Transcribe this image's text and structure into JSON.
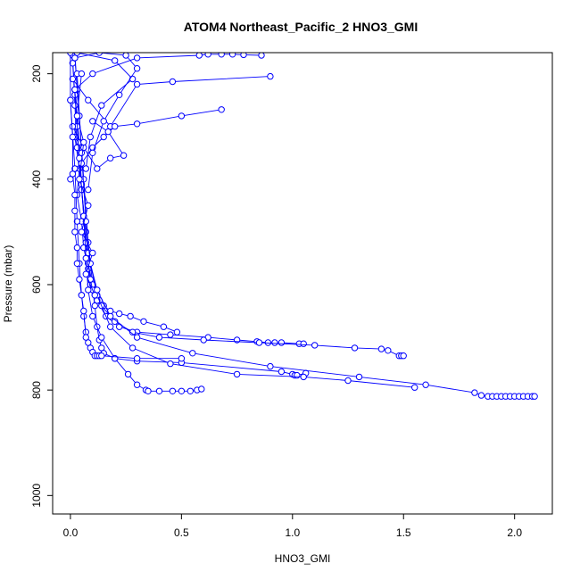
{
  "chart_data": {
    "type": "line",
    "title": "ATOM4 Northeast_Pacific_2 HNO3_GMI",
    "xlabel": "HNO3_GMI",
    "ylabel": "Pressure (mbar)",
    "xlim": [
      -0.08,
      2.17
    ],
    "ylim": [
      1035,
      160
    ],
    "y_reversed": true,
    "xticks": [
      0.0,
      0.5,
      1.0,
      1.5,
      2.0
    ],
    "xtick_labels": [
      "0.0",
      "0.5",
      "1.0",
      "1.5",
      "2.0"
    ],
    "yticks": [
      200,
      400,
      600,
      800,
      1000
    ],
    "ytick_labels": [
      "200",
      "400",
      "600",
      "800",
      "1000"
    ],
    "series_color": "#0000ff",
    "marker": "open-circle",
    "grid": false,
    "legend": "none",
    "series": [
      {
        "x": [
          0.02,
          0.03,
          0.02,
          0.04,
          0.03,
          0.05,
          0.06,
          0.08,
          0.09,
          0.1,
          0.11,
          0.13,
          0.15,
          0.18,
          0.22,
          0.27,
          0.33,
          0.42,
          0.48
        ],
        "y": [
          160,
          230,
          320,
          380,
          430,
          480,
          530,
          570,
          600,
          610,
          620,
          630,
          640,
          650,
          655,
          660,
          670,
          680,
          690
        ]
      },
      {
        "x": [
          0.01,
          0.02,
          0.03,
          0.05,
          0.07,
          0.08,
          0.1,
          0.12,
          0.16,
          0.22,
          0.3,
          0.45,
          0.62,
          0.75,
          0.84,
          0.89,
          0.92,
          0.95,
          1.03,
          1.05
        ],
        "y": [
          165,
          260,
          340,
          420,
          500,
          560,
          600,
          630,
          660,
          680,
          690,
          695,
          700,
          705,
          708,
          710,
          710,
          710,
          712,
          712
        ]
      },
      {
        "x": [
          0.02,
          0.04,
          0.06,
          0.08,
          0.1,
          0.14,
          0.2,
          0.28,
          0.4,
          0.6,
          0.85,
          1.1,
          1.28,
          1.4,
          1.43,
          1.48,
          1.49,
          1.5
        ],
        "y": [
          170,
          280,
          400,
          520,
          600,
          640,
          670,
          690,
          700,
          705,
          710,
          715,
          720,
          722,
          725,
          735,
          735,
          735
        ]
      },
      {
        "x": [
          0.02,
          0.04,
          0.05,
          0.06,
          0.07,
          0.08,
          0.09,
          0.1,
          0.11,
          0.12,
          0.13,
          0.14,
          0.15,
          0.2,
          0.3,
          0.5,
          0.95,
          1.0,
          1.01,
          1.02,
          1.06
        ],
        "y": [
          240,
          330,
          410,
          470,
          520,
          560,
          590,
          610,
          640,
          680,
          705,
          720,
          730,
          740,
          745,
          748,
          765,
          770,
          772,
          772,
          768
        ]
      },
      {
        "x": [
          0.01,
          0.03,
          0.05,
          0.08,
          0.12,
          0.18,
          0.28,
          0.45,
          0.75,
          1.05,
          1.25,
          1.55
        ],
        "y": [
          180,
          300,
          420,
          540,
          620,
          680,
          720,
          750,
          770,
          775,
          782,
          795
        ]
      },
      {
        "x": [
          0.03,
          0.05,
          0.07,
          0.09,
          0.12,
          0.18,
          0.3,
          0.55,
          0.9,
          1.3,
          1.6,
          1.82,
          1.85,
          1.88,
          1.9,
          1.92,
          1.94,
          1.96,
          1.98,
          2.0,
          2.02,
          2.04,
          2.06,
          2.08,
          2.09
        ],
        "y": [
          200,
          350,
          480,
          560,
          610,
          660,
          700,
          730,
          755,
          775,
          790,
          805,
          810,
          812,
          812,
          812,
          812,
          812,
          812,
          812,
          812,
          812,
          812,
          812,
          812
        ]
      },
      {
        "x": [
          0.02,
          0.04,
          0.06,
          0.07,
          0.08,
          0.1,
          0.14,
          0.2,
          0.26,
          0.3,
          0.34,
          0.35,
          0.4,
          0.46,
          0.5,
          0.54,
          0.57,
          0.59
        ],
        "y": [
          230,
          360,
          470,
          550,
          610,
          660,
          700,
          740,
          770,
          790,
          800,
          802,
          802,
          802,
          802,
          802,
          800,
          798
        ]
      },
      {
        "x": [
          0.0,
          0.02,
          0.03,
          0.04,
          0.05,
          0.06,
          0.07,
          0.08,
          0.09,
          0.1,
          0.11,
          0.12,
          0.13,
          0.14,
          0.3,
          0.5
        ],
        "y": [
          250,
          380,
          480,
          560,
          620,
          660,
          690,
          710,
          720,
          728,
          735,
          735,
          735,
          735,
          740,
          740
        ]
      },
      {
        "x": [
          0.02,
          0.1,
          0.3,
          0.58,
          0.62,
          0.68,
          0.73,
          0.78,
          0.86
        ],
        "y": [
          230,
          200,
          170,
          165,
          163,
          163,
          163,
          164,
          165
        ]
      },
      {
        "x": [
          0.01,
          0.08,
          0.18,
          0.3,
          0.46,
          0.9
        ],
        "y": [
          210,
          250,
          300,
          220,
          215,
          205
        ]
      },
      {
        "x": [
          0.0,
          0.05,
          0.1,
          0.15,
          0.2,
          0.3,
          0.5,
          0.68
        ],
        "y": [
          400,
          370,
          340,
          320,
          300,
          295,
          280,
          268
        ]
      },
      {
        "x": [
          0.01,
          0.06,
          0.12,
          0.18,
          0.24,
          0.17,
          0.1
        ],
        "y": [
          300,
          340,
          380,
          360,
          355,
          310,
          290
        ]
      },
      {
        "x": [
          0.0,
          0.0,
          0.01,
          0.01,
          0.02,
          0.02,
          0.02,
          0.03,
          0.03,
          0.04,
          0.05,
          0.06,
          0.07
        ],
        "y": [
          160,
          250,
          320,
          390,
          430,
          460,
          500,
          530,
          560,
          590,
          620,
          650,
          700
        ]
      },
      {
        "x": [
          0.05,
          0.03,
          0.06,
          0.04,
          0.08,
          0.05,
          0.1,
          0.07,
          0.11
        ],
        "y": [
          200,
          280,
          330,
          400,
          450,
          500,
          540,
          580,
          620
        ]
      },
      {
        "x": [
          0.03,
          0.2,
          0.28,
          0.14,
          0.09,
          0.07
        ],
        "y": [
          160,
          175,
          210,
          260,
          320,
          380
        ]
      },
      {
        "x": [
          0.02,
          0.13,
          0.25,
          0.3,
          0.22,
          0.15,
          0.1,
          0.08
        ],
        "y": [
          170,
          160,
          165,
          190,
          240,
          290,
          350,
          420
        ]
      }
    ]
  }
}
